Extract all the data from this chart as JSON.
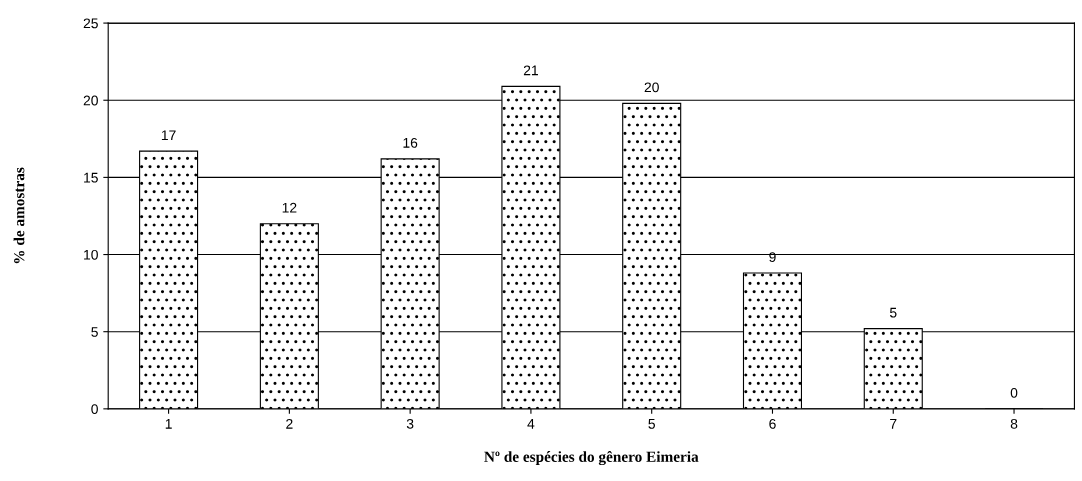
{
  "chart_data": {
    "type": "bar",
    "xlabel": "Nº de espécies do gênero Eimeria",
    "ylabel": "% de amostras",
    "categories": [
      "1",
      "2",
      "3",
      "4",
      "5",
      "6",
      "7",
      "8"
    ],
    "values": [
      16.7,
      12,
      16.2,
      20.9,
      19.8,
      8.8,
      5.2,
      0
    ],
    "value_labels": [
      "17",
      "12",
      "16",
      "21",
      "20",
      "9",
      "5",
      "0"
    ],
    "color": "#000000",
    "ylim": [
      0,
      25
    ],
    "yticks": [
      0,
      5,
      10,
      15,
      20,
      25
    ],
    "grid": "y",
    "legend": false
  }
}
